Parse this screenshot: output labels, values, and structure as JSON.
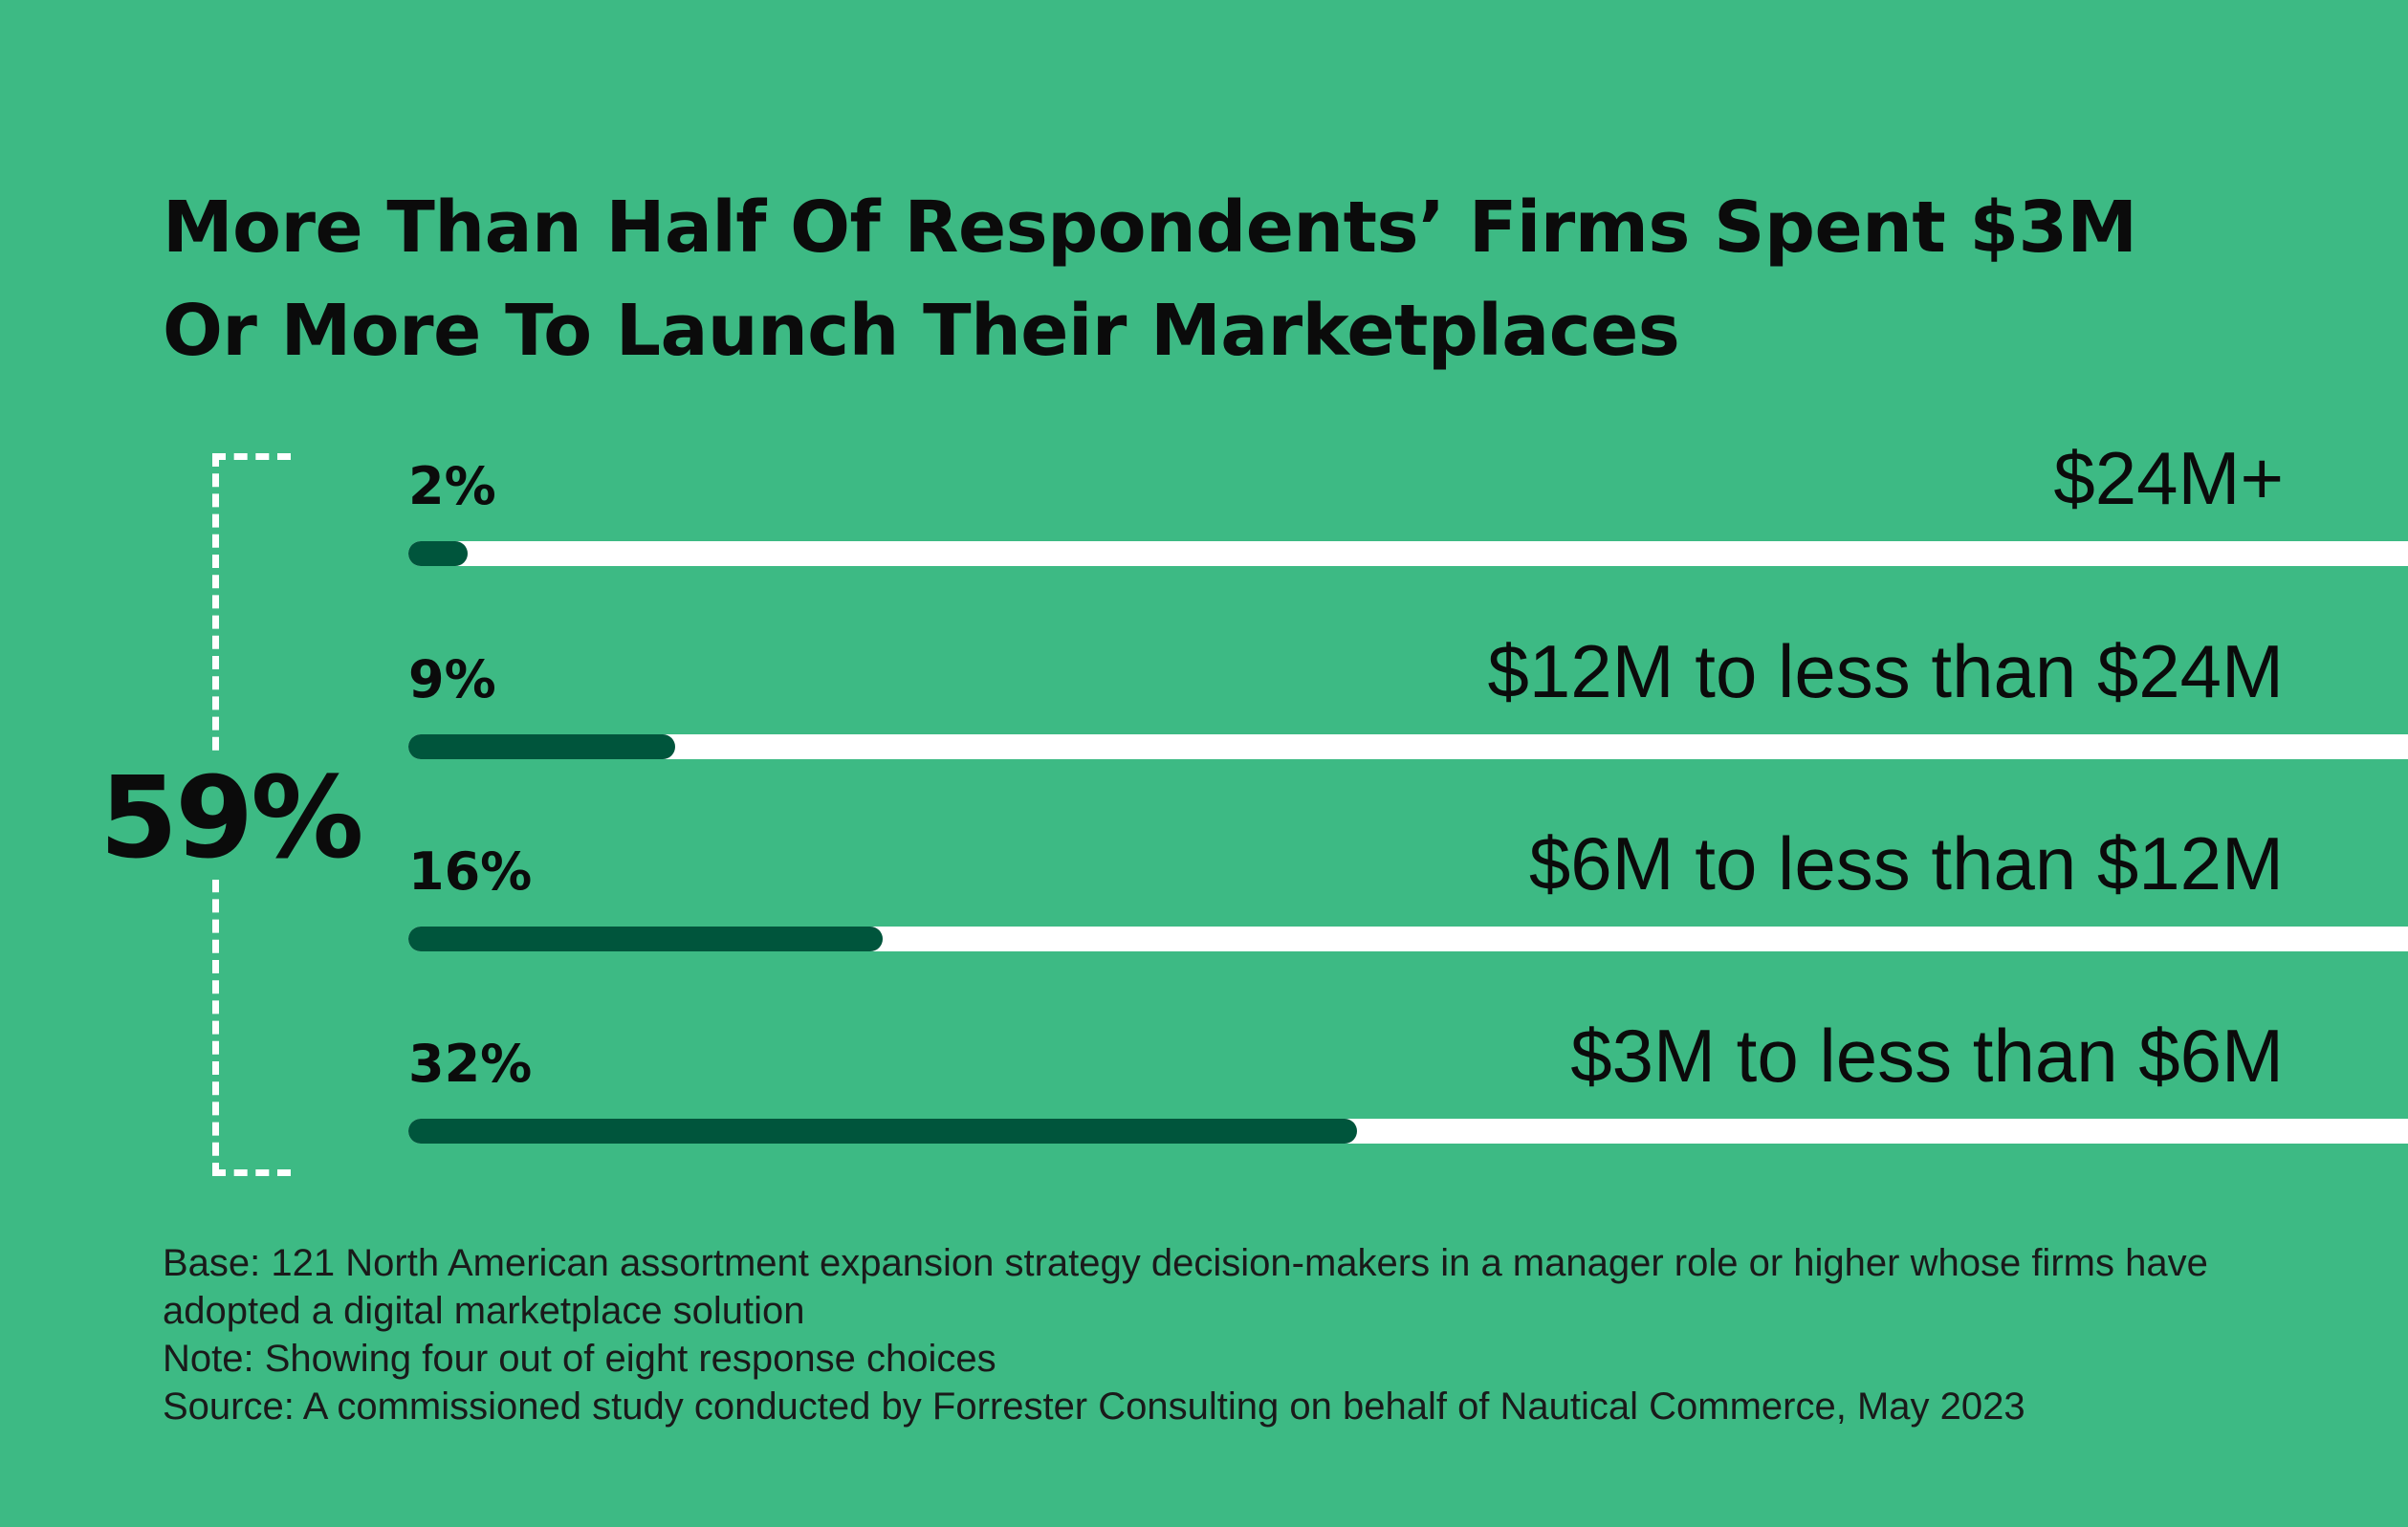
{
  "title": "More Than Half Of Respondents’ Firms Spent $3M Or More To Launch Their Marketplaces",
  "bracket_total": "59%",
  "colors": {
    "background": "#3dba84",
    "bar_fill": "#00553c",
    "bar_track": "#ffffff",
    "text": "#0b0b0b"
  },
  "chart_data": {
    "type": "bar",
    "orientation": "horizontal",
    "title": "More Than Half Of Respondents’ Firms Spent $3M Or More To Launch Their Marketplaces",
    "categories": [
      "$24M+",
      "$12M to less than $24M",
      "$6M to less than $12M",
      "$3M to less than $6M"
    ],
    "values": [
      2,
      9,
      16,
      32
    ],
    "value_labels": [
      "2%",
      "9%",
      "16%",
      "32%"
    ],
    "xlim": [
      0,
      100
    ],
    "unit": "%",
    "grid": false,
    "legend": "none"
  },
  "notes": [
    "Base: 121 North American assortment expansion strategy decision-makers in a manager role or higher whose firms have adopted a digital marketplace solution",
    "Note: Showing four out of eight response choices",
    "Source: A commissioned study conducted by Forrester Consulting on behalf of Nautical Commerce, May 2023"
  ]
}
